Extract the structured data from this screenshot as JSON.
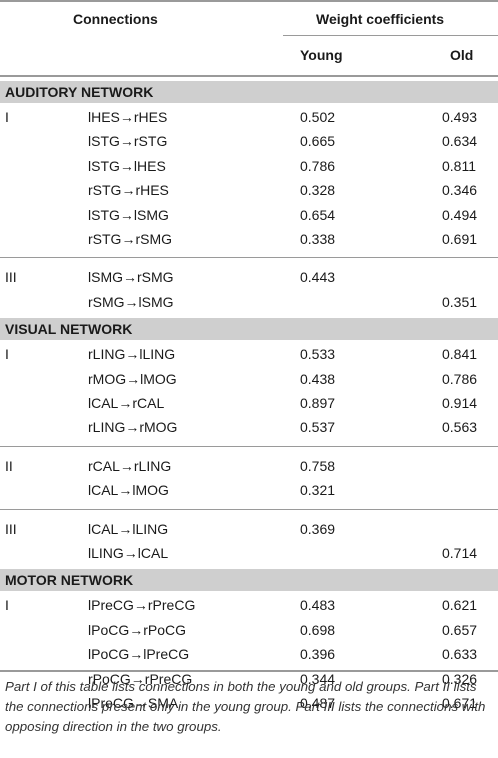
{
  "header": {
    "connections": "Connections",
    "weight_coefficients": "Weight coefficients",
    "young": "Young",
    "old": "Old"
  },
  "sections": [
    {
      "title": "AUDITORY NETWORK",
      "groups": [
        {
          "part": "I",
          "rows": [
            {
              "connection": "lHES→rHES",
              "young": "0.502",
              "old": "0.493"
            },
            {
              "connection": "lSTG→rSTG",
              "young": "0.665",
              "old": "0.634"
            },
            {
              "connection": "lSTG→lHES",
              "young": "0.786",
              "old": "0.811"
            },
            {
              "connection": "rSTG→rHES",
              "young": "0.328",
              "old": "0.346"
            },
            {
              "connection": "lSTG→lSMG",
              "young": "0.654",
              "old": "0.494"
            },
            {
              "connection": "rSTG→rSMG",
              "young": "0.338",
              "old": "0.691"
            }
          ]
        },
        {
          "part": "III",
          "rows": [
            {
              "connection": "lSMG→rSMG",
              "young": "0.443",
              "old": ""
            },
            {
              "connection": "rSMG→lSMG",
              "young": "",
              "old": "0.351"
            }
          ]
        }
      ]
    },
    {
      "title": "VISUAL NETWORK",
      "groups": [
        {
          "part": "I",
          "rows": [
            {
              "connection": "rLING→lLING",
              "young": "0.533",
              "old": "0.841"
            },
            {
              "connection": "rMOG→lMOG",
              "young": "0.438",
              "old": "0.786"
            },
            {
              "connection": "lCAL→rCAL",
              "young": "0.897",
              "old": "0.914"
            },
            {
              "connection": "rLING→rMOG",
              "young": "0.537",
              "old": "0.563"
            }
          ]
        },
        {
          "part": "II",
          "rows": [
            {
              "connection": "rCAL→rLING",
              "young": "0.758",
              "old": ""
            },
            {
              "connection": "lCAL→lMOG",
              "young": "0.321",
              "old": ""
            }
          ]
        },
        {
          "part": "III",
          "rows": [
            {
              "connection": "lCAL→lLING",
              "young": "0.369",
              "old": ""
            },
            {
              "connection": "lLING→lCAL",
              "young": "",
              "old": "0.714"
            }
          ]
        }
      ]
    },
    {
      "title": "MOTOR NETWORK",
      "groups": [
        {
          "part": "I",
          "rows": [
            {
              "connection": "lPreCG→rPreCG",
              "young": "0.483",
              "old": "0.621"
            },
            {
              "connection": "lPoCG→rPoCG",
              "young": "0.698",
              "old": "0.657"
            },
            {
              "connection": "lPoCG→lPreCG",
              "young": "0.396",
              "old": "0.633"
            },
            {
              "connection": "rPoCG→rPreCG",
              "young": "0.344",
              "old": "0.326"
            },
            {
              "connection": "lPreCG→SMA",
              "young": "0.487",
              "old": "0.671"
            }
          ]
        }
      ]
    }
  ],
  "footnote": "Part I of this table lists connections in both the young and old groups. Part II lists the connections present only in the young group. Part III lists the connections with opposing direction in the two groups."
}
